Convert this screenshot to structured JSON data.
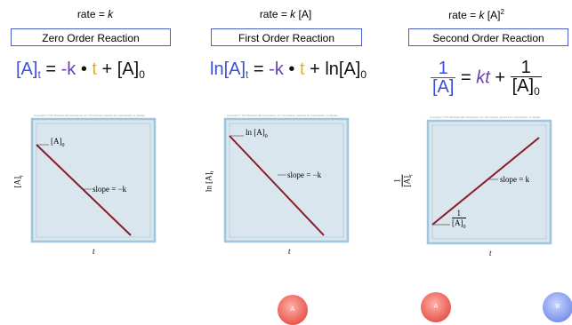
{
  "columns": [
    {
      "rate_prefix": "rate = ",
      "rate_var": "k",
      "rate_suffix": "",
      "title": "Zero Order Reaction",
      "equation": {
        "lhs": "[A]",
        "lhs_sub": "t",
        "eq": " = ",
        "k": "-k",
        "dot": " • ",
        "t": "t",
        "plus": " + [A]",
        "plus_sub": "0"
      },
      "plot": {
        "ylabel": "[A]",
        "ylabel_sub": "t",
        "xlabel": "t",
        "start_label": "[A]",
        "start_sub": "0",
        "slope_label": "slope = −k"
      }
    },
    {
      "rate_prefix": "rate = ",
      "rate_var": "k",
      "rate_suffix": " [A]",
      "title": "First Order Reaction",
      "equation": {
        "lhs": "ln[A]",
        "lhs_sub": "t",
        "eq": " = ",
        "k": "-k",
        "dot": " • ",
        "t": "t",
        "plus": " + ln[A]",
        "plus_sub": "0"
      },
      "plot": {
        "ylabel": "ln [A]",
        "ylabel_sub": "t",
        "xlabel": "t",
        "start_label": "ln [A]",
        "start_sub": "0",
        "slope_label": "slope = −k"
      }
    },
    {
      "rate_prefix": "rate = ",
      "rate_var": "k",
      "rate_suffix": " [A]",
      "rate_sup": "2",
      "title": "Second Order Reaction",
      "equation": {
        "frac_num": "1",
        "frac_den": "[A]",
        "eq": " = ",
        "kt": "kt",
        "plus": " + ",
        "frac2_num": "1",
        "frac2_den": "[A]",
        "frac2_den_sub": "0"
      },
      "plot": {
        "ylabel_num": "1",
        "ylabel_den": "[A]",
        "ylabel_sub": "t",
        "xlabel": "t",
        "start_num": "1",
        "start_den": "[A]",
        "start_sub": "0",
        "slope_label": "slope = k"
      }
    }
  ],
  "buttons": [
    {
      "label": "A"
    },
    {
      "label": "A"
    },
    {
      "label": "B"
    }
  ],
  "copyright_text": "Copyright © The McGraw-Hill Companies, Inc. Permission required for reproduction or display.",
  "colors": {
    "plot_bg": "#d9e6ee",
    "plot_border": "#9fc6dc",
    "line": "#8b1a2b",
    "box_border": "#4a5fc1"
  }
}
